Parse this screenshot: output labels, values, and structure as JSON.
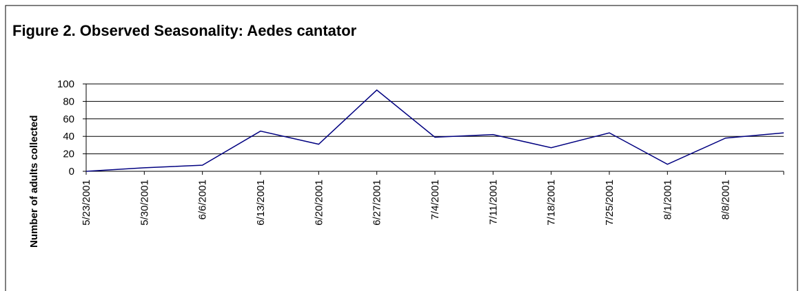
{
  "chart_data": {
    "type": "line",
    "title": "Figure 2. Observed Seasonality: Aedes cantator",
    "y_label": "Number of adults collected",
    "categories": [
      "5/23/2001",
      "5/30/2001",
      "6/6/2001",
      "6/13/2001",
      "6/20/2001",
      "6/27/2001",
      "7/4/2001",
      "7/11/2001",
      "7/18/2001",
      "7/25/2001",
      "8/1/2001",
      "8/8/2001",
      null
    ],
    "values": [
      0,
      4,
      7,
      46,
      31,
      93,
      39,
      42,
      27,
      44,
      8,
      38,
      44
    ],
    "color": "#000080",
    "ylim": [
      0,
      100
    ],
    "yticks": [
      0,
      20,
      40,
      60,
      80,
      100
    ],
    "grid": true
  }
}
